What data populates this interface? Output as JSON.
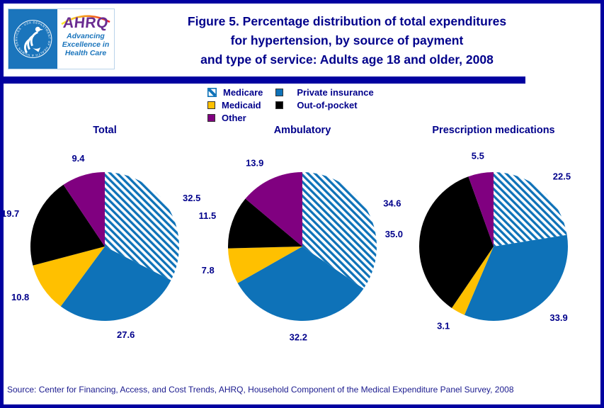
{
  "header": {
    "logo": {
      "seal_text": "DEPARTMENT OF HEALTH & HUMAN SERVICES · USA",
      "ahrq_acronym": "AHRQ",
      "tagline_line1": "Advancing",
      "tagline_line2": "Excellence in",
      "tagline_line3": "Health Care"
    },
    "title_line1": "Figure 5. Percentage distribution of total expenditures",
    "title_line2": "for hypertension, by source of payment",
    "title_line3": "and type of service: Adults age 18 and older, 2008"
  },
  "legend": {
    "items": [
      {
        "label": "Medicare",
        "swatch": "hatch",
        "color": "#0E72B8"
      },
      {
        "label": "Medicaid",
        "swatch": "solid",
        "color": "#FFC000"
      },
      {
        "label": "Other",
        "swatch": "solid",
        "color": "#800080"
      },
      {
        "label": "Private insurance",
        "swatch": "solid",
        "color": "#0E72B8"
      },
      {
        "label": "Out-of-pocket",
        "swatch": "solid",
        "color": "#000000"
      }
    ],
    "column_split": 3
  },
  "chart_data": [
    {
      "type": "pie",
      "title": "Total",
      "labels": [
        "Medicare",
        "Private insurance",
        "Medicaid",
        "Out-of-pocket",
        "Other"
      ],
      "values": [
        32.5,
        27.6,
        10.8,
        19.7,
        9.4
      ],
      "start_angle": "12-oclock",
      "direction": "clockwise",
      "value_label_format": "one-decimal"
    },
    {
      "type": "pie",
      "title": "Ambulatory",
      "labels": [
        "Medicare",
        "Private insurance",
        "Medicaid",
        "Out-of-pocket",
        "Other"
      ],
      "values": [
        34.6,
        32.2,
        7.8,
        11.5,
        13.9
      ],
      "start_angle": "12-oclock",
      "direction": "clockwise",
      "value_label_format": "one-decimal"
    },
    {
      "type": "pie",
      "title": "Prescription medications",
      "labels": [
        "Medicare",
        "Private insurance",
        "Medicaid",
        "Out-of-pocket",
        "Other"
      ],
      "values": [
        22.5,
        33.9,
        3.1,
        35.0,
        5.5
      ],
      "start_angle": "12-oclock",
      "direction": "clockwise",
      "value_label_format": "one-decimal"
    }
  ],
  "slice_styles": {
    "Medicare": {
      "fill": "hatch",
      "color": "#0E72B8"
    },
    "Private insurance": {
      "fill": "solid",
      "color": "#0E72B8"
    },
    "Medicaid": {
      "fill": "solid",
      "color": "#FFC000"
    },
    "Out-of-pocket": {
      "fill": "solid",
      "color": "#000000"
    },
    "Other": {
      "fill": "solid",
      "color": "#800080"
    }
  },
  "colors": {
    "border_navy": "#0101A0",
    "text_navy": "#00008B",
    "hatch_blue": "#0E72B8",
    "logo_blue": "#1B75BC",
    "ahrq_purple": "#6A2C91"
  },
  "footer": {
    "source": "Source: Center for Financing, Access, and Cost Trends, AHRQ, Household Component of the Medical Expenditure Panel Survey, 2008"
  }
}
